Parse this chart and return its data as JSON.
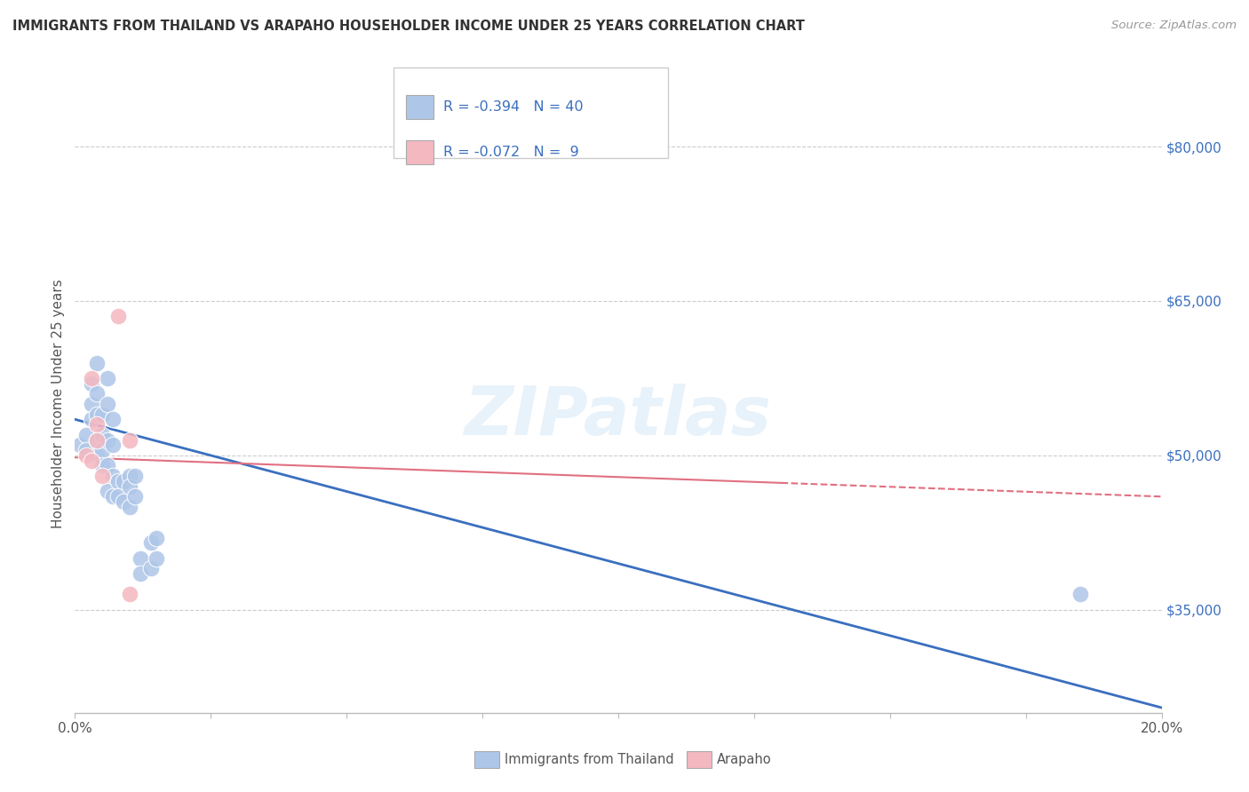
{
  "title": "IMMIGRANTS FROM THAILAND VS ARAPAHO HOUSEHOLDER INCOME UNDER 25 YEARS CORRELATION CHART",
  "source": "Source: ZipAtlas.com",
  "ylabel": "Householder Income Under 25 years",
  "xlim": [
    0.0,
    0.2
  ],
  "ylim": [
    25000,
    85000
  ],
  "yticks": [
    35000,
    50000,
    65000,
    80000
  ],
  "ytick_labels": [
    "$35,000",
    "$50,000",
    "$65,000",
    "$80,000"
  ],
  "xticks": [
    0.0,
    0.025,
    0.05,
    0.075,
    0.1,
    0.125,
    0.15,
    0.175,
    0.2
  ],
  "xtick_labels": [
    "0.0%",
    "",
    "",
    "",
    "",
    "",
    "",
    "",
    "20.0%"
  ],
  "background_color": "#ffffff",
  "grid_color": "#cccccc",
  "thailand_color": "#aec6e8",
  "arapaho_color": "#f4b8c1",
  "trend_thailand_color": "#3a6fbf",
  "trend_arapaho_color": "#e07080",
  "legend_R_thailand": "-0.394",
  "legend_N_thailand": "40",
  "legend_R_arapaho": "-0.072",
  "legend_N_arapaho": "9",
  "watermark": "ZIPatlas",
  "thailand_points": [
    [
      0.001,
      51000
    ],
    [
      0.002,
      52000
    ],
    [
      0.002,
      50500
    ],
    [
      0.003,
      57000
    ],
    [
      0.003,
      55000
    ],
    [
      0.003,
      53500
    ],
    [
      0.004,
      59000
    ],
    [
      0.004,
      56000
    ],
    [
      0.004,
      54000
    ],
    [
      0.004,
      51500
    ],
    [
      0.004,
      50000
    ],
    [
      0.005,
      54000
    ],
    [
      0.005,
      52000
    ],
    [
      0.005,
      50500
    ],
    [
      0.005,
      49000
    ],
    [
      0.006,
      57500
    ],
    [
      0.006,
      55000
    ],
    [
      0.006,
      51500
    ],
    [
      0.006,
      49000
    ],
    [
      0.006,
      46500
    ],
    [
      0.007,
      53500
    ],
    [
      0.007,
      51000
    ],
    [
      0.007,
      48000
    ],
    [
      0.007,
      46000
    ],
    [
      0.008,
      47500
    ],
    [
      0.008,
      46000
    ],
    [
      0.009,
      47500
    ],
    [
      0.009,
      45500
    ],
    [
      0.01,
      48000
    ],
    [
      0.01,
      47000
    ],
    [
      0.01,
      45000
    ],
    [
      0.011,
      48000
    ],
    [
      0.011,
      46000
    ],
    [
      0.012,
      40000
    ],
    [
      0.012,
      38500
    ],
    [
      0.014,
      41500
    ],
    [
      0.014,
      39000
    ],
    [
      0.015,
      42000
    ],
    [
      0.015,
      40000
    ],
    [
      0.185,
      36500
    ]
  ],
  "arapaho_points": [
    [
      0.002,
      50000
    ],
    [
      0.003,
      57500
    ],
    [
      0.003,
      49500
    ],
    [
      0.004,
      53000
    ],
    [
      0.004,
      51500
    ],
    [
      0.005,
      48000
    ],
    [
      0.008,
      63500
    ],
    [
      0.01,
      51500
    ],
    [
      0.01,
      36500
    ]
  ],
  "blue_trend_x": [
    0.0,
    0.2
  ],
  "blue_trend_y": [
    53500,
    25500
  ],
  "pink_trend_x": [
    0.0,
    0.2
  ],
  "pink_trend_y": [
    49800,
    46000
  ]
}
